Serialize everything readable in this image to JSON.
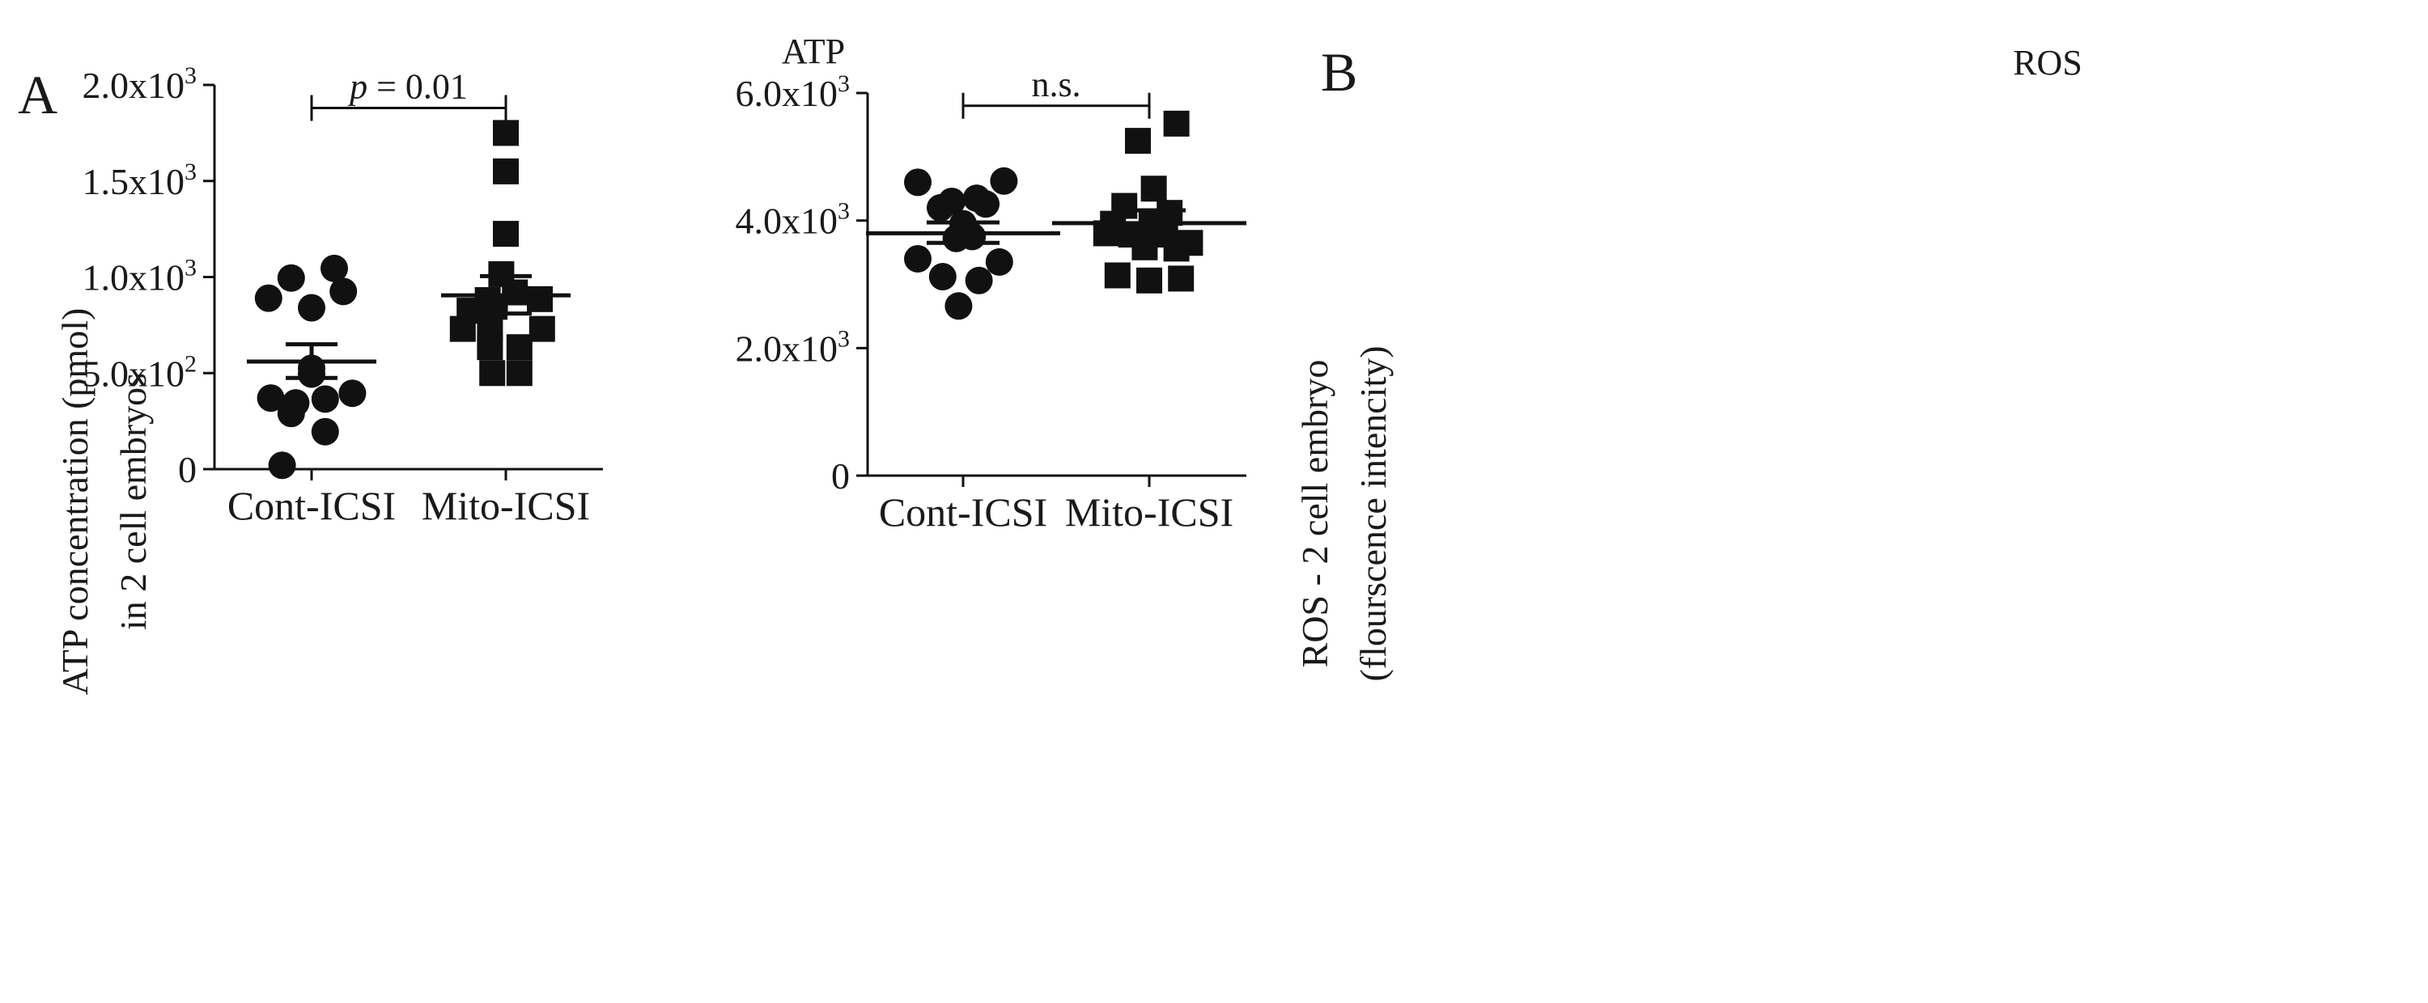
{
  "chart_data": [
    {
      "panel": "A",
      "type": "scatter",
      "title": "ATP",
      "ylabel_lines": [
        "ATP concentration (pmol)",
        "in 2 cell embryos"
      ],
      "xlabel": "",
      "ylim": [
        0,
        2000
      ],
      "yticks": [
        {
          "value": 0,
          "mant": "0",
          "sup": ""
        },
        {
          "value": 500,
          "mant": "5.0x10",
          "sup": "2"
        },
        {
          "value": 1000,
          "mant": "1.0x10",
          "sup": "3"
        },
        {
          "value": 1500,
          "mant": "1.5x10",
          "sup": "3"
        },
        {
          "value": 2000,
          "mant": "2.0x10",
          "sup": "3"
        }
      ],
      "categories": [
        "Cont-ICSI",
        "Mito-ICSI"
      ],
      "series": [
        {
          "name": "Cont-ICSI",
          "marker": "circle",
          "points": [
            {
              "dx": 0.1,
              "y": 1045
            },
            {
              "dx": -0.09,
              "y": 995
            },
            {
              "dx": 0.14,
              "y": 925
            },
            {
              "dx": -0.19,
              "y": 890
            },
            {
              "dx": 0.0,
              "y": 840
            },
            {
              "dx": 0.0,
              "y": 525
            },
            {
              "dx": 0.0,
              "y": 495
            },
            {
              "dx": -0.18,
              "y": 370
            },
            {
              "dx": 0.18,
              "y": 395
            },
            {
              "dx": -0.07,
              "y": 345
            },
            {
              "dx": 0.06,
              "y": 365
            },
            {
              "dx": -0.09,
              "y": 290
            },
            {
              "dx": 0.06,
              "y": 195
            },
            {
              "dx": -0.13,
              "y": 20
            }
          ],
          "mean": 560,
          "sem_low": 475,
          "sem_high": 650
        },
        {
          "name": "Mito-ICSI",
          "marker": "square",
          "points": [
            {
              "dx": 0.0,
              "y": 1750
            },
            {
              "dx": 0.0,
              "y": 1550
            },
            {
              "dx": 0.0,
              "y": 1225
            },
            {
              "dx": -0.02,
              "y": 1015
            },
            {
              "dx": 0.04,
              "y": 920
            },
            {
              "dx": -0.08,
              "y": 880
            },
            {
              "dx": 0.15,
              "y": 885
            },
            {
              "dx": -0.05,
              "y": 845
            },
            {
              "dx": -0.16,
              "y": 825
            },
            {
              "dx": -0.19,
              "y": 730
            },
            {
              "dx": 0.16,
              "y": 730
            },
            {
              "dx": -0.07,
              "y": 730
            },
            {
              "dx": -0.07,
              "y": 635
            },
            {
              "dx": 0.06,
              "y": 635
            },
            {
              "dx": -0.06,
              "y": 500
            },
            {
              "dx": 0.06,
              "y": 500
            }
          ],
          "mean": 905,
          "sem_low": 810,
          "sem_high": 1005
        }
      ],
      "significance": {
        "label_italic": "p",
        "label_rest": " = 0.01",
        "y": 1880
      }
    },
    {
      "panel": "B",
      "type": "scatter",
      "title": "ROS",
      "ylabel_lines": [
        "ROS - 2 cell embryo",
        "(flourscence intencity)"
      ],
      "xlabel": "",
      "ylim": [
        0,
        6000
      ],
      "yticks": [
        {
          "value": 0,
          "mant": "0",
          "sup": ""
        },
        {
          "value": 2000,
          "mant": "2.0x10",
          "sup": "3"
        },
        {
          "value": 4000,
          "mant": "4.0x10",
          "sup": "3"
        },
        {
          "value": 6000,
          "mant": "6.0x10",
          "sup": "3"
        }
      ],
      "categories": [
        "Cont-ICSI",
        "Mito-ICSI"
      ],
      "series": [
        {
          "name": "Cont-ICSI",
          "marker": "circle",
          "points": [
            {
              "dx": -0.2,
              "y": 4600
            },
            {
              "dx": 0.18,
              "y": 4620
            },
            {
              "dx": -0.05,
              "y": 4300
            },
            {
              "dx": 0.06,
              "y": 4350
            },
            {
              "dx": -0.1,
              "y": 4200
            },
            {
              "dx": 0.1,
              "y": 4260
            },
            {
              "dx": 0.0,
              "y": 3950
            },
            {
              "dx": -0.03,
              "y": 3720
            },
            {
              "dx": 0.04,
              "y": 3750
            },
            {
              "dx": -0.2,
              "y": 3400
            },
            {
              "dx": 0.16,
              "y": 3350
            },
            {
              "dx": -0.09,
              "y": 3120
            },
            {
              "dx": 0.07,
              "y": 3060
            },
            {
              "dx": -0.02,
              "y": 2660
            }
          ],
          "mean": 3800,
          "sem_low": 3650,
          "sem_high": 3970
        },
        {
          "name": "Mito-ICSI",
          "marker": "square",
          "points": [
            {
              "dx": 0.12,
              "y": 5520
            },
            {
              "dx": -0.05,
              "y": 5250
            },
            {
              "dx": 0.02,
              "y": 4500
            },
            {
              "dx": -0.11,
              "y": 4230
            },
            {
              "dx": 0.09,
              "y": 4120
            },
            {
              "dx": -0.16,
              "y": 3950
            },
            {
              "dx": 0.01,
              "y": 3950
            },
            {
              "dx": -0.19,
              "y": 3800
            },
            {
              "dx": -0.08,
              "y": 3780
            },
            {
              "dx": 0.07,
              "y": 3780
            },
            {
              "dx": 0.18,
              "y": 3650
            },
            {
              "dx": -0.02,
              "y": 3580
            },
            {
              "dx": 0.12,
              "y": 3560
            },
            {
              "dx": -0.14,
              "y": 3140
            },
            {
              "dx": 0.0,
              "y": 3060
            },
            {
              "dx": 0.14,
              "y": 3090
            }
          ],
          "mean": 3960,
          "sem_low": 3750,
          "sem_high": 4160
        }
      ],
      "significance": {
        "label_italic": "",
        "label_rest": "n.s.",
        "y": 5800
      }
    }
  ]
}
